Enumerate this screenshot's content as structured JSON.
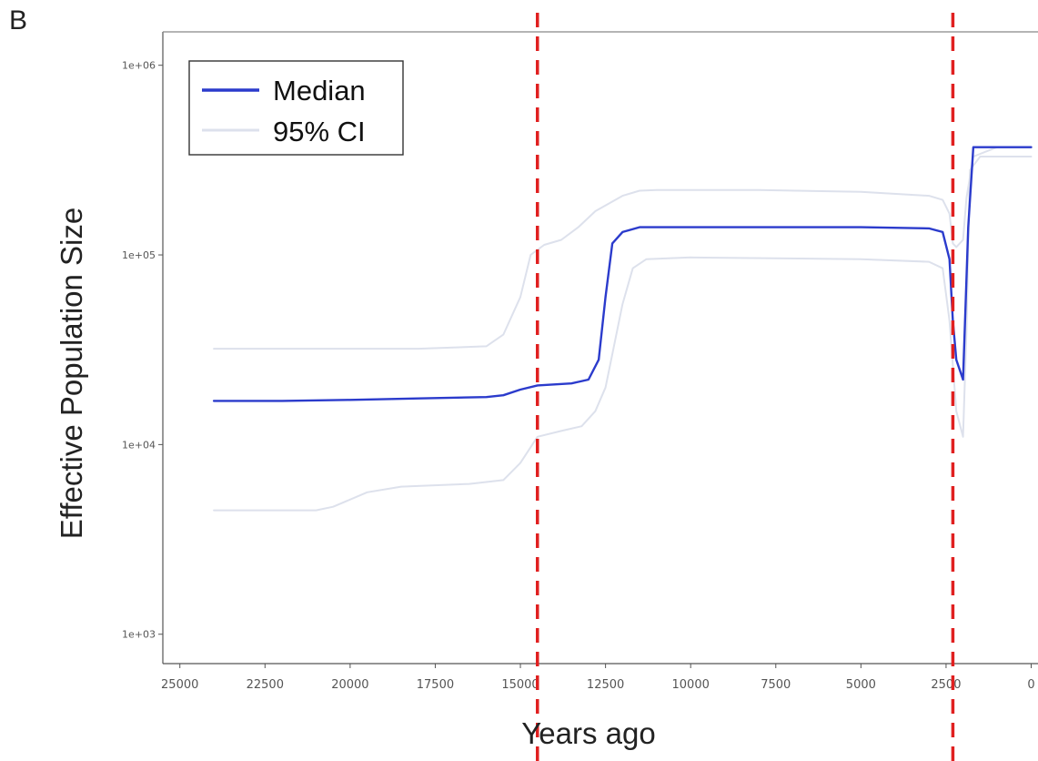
{
  "panel_label": "B",
  "chart_data": {
    "type": "line",
    "xlabel": "Years ago",
    "ylabel": "Effective Population Size",
    "x_reversed": true,
    "y_scale": "log",
    "xlim": [
      25500,
      -200
    ],
    "ylim": [
      700,
      1500000
    ],
    "x_ticks": [
      25000,
      22500,
      20000,
      17500,
      15000,
      12500,
      10000,
      7500,
      5000,
      2500,
      0
    ],
    "x_tick_labels": [
      "25000",
      "22500",
      "20000",
      "17500",
      "15000",
      "12500",
      "10000",
      "7500",
      "5000",
      "2500",
      "0"
    ],
    "y_ticks": [
      1000,
      10000,
      100000,
      1000000
    ],
    "y_tick_labels": [
      "1e+03",
      "1e+04",
      "1e+05",
      "1e+06"
    ],
    "grid": false,
    "legend": {
      "position": "top-left",
      "entries": [
        {
          "label": "Median",
          "color": "#2b3bcc"
        },
        {
          "label": "95% CI",
          "color": "#dde1ec"
        }
      ]
    },
    "vlines": [
      {
        "x": 14500,
        "color": "#e02020",
        "style": "dashed"
      },
      {
        "x": 2300,
        "color": "#e02020",
        "style": "dashed"
      }
    ],
    "series": [
      {
        "name": "Median",
        "color": "#2b3bcc",
        "width": 2.4,
        "points": [
          [
            24000,
            17000
          ],
          [
            22000,
            17000
          ],
          [
            20000,
            17200
          ],
          [
            18000,
            17500
          ],
          [
            16000,
            17800
          ],
          [
            15500,
            18200
          ],
          [
            15000,
            19500
          ],
          [
            14500,
            20500
          ],
          [
            13500,
            21000
          ],
          [
            13000,
            22000
          ],
          [
            12700,
            28000
          ],
          [
            12500,
            60000
          ],
          [
            12300,
            115000
          ],
          [
            12000,
            132000
          ],
          [
            11500,
            140000
          ],
          [
            11000,
            140000
          ],
          [
            8000,
            140000
          ],
          [
            5000,
            140000
          ],
          [
            3000,
            138000
          ],
          [
            2600,
            132000
          ],
          [
            2400,
            95000
          ],
          [
            2300,
            45000
          ],
          [
            2200,
            28000
          ],
          [
            2000,
            22000
          ],
          [
            1850,
            140000
          ],
          [
            1700,
            370000
          ],
          [
            1000,
            370000
          ],
          [
            0,
            370000
          ]
        ]
      },
      {
        "name": "CI upper",
        "color": "#dde1ec",
        "width": 2,
        "points": [
          [
            24000,
            32000
          ],
          [
            22000,
            32000
          ],
          [
            18000,
            32000
          ],
          [
            16000,
            33000
          ],
          [
            15500,
            38000
          ],
          [
            15000,
            60000
          ],
          [
            14700,
            100000
          ],
          [
            14300,
            113000
          ],
          [
            13800,
            120000
          ],
          [
            13300,
            140000
          ],
          [
            12800,
            170000
          ],
          [
            12000,
            205000
          ],
          [
            11500,
            218000
          ],
          [
            11000,
            220000
          ],
          [
            8000,
            220000
          ],
          [
            5000,
            215000
          ],
          [
            3000,
            205000
          ],
          [
            2600,
            195000
          ],
          [
            2400,
            165000
          ],
          [
            2300,
            115000
          ],
          [
            2200,
            110000
          ],
          [
            2000,
            120000
          ],
          [
            1900,
            200000
          ],
          [
            1700,
            330000
          ],
          [
            1000,
            370000
          ],
          [
            0,
            370000
          ]
        ]
      },
      {
        "name": "CI lower",
        "color": "#dde1ec",
        "width": 2,
        "points": [
          [
            24000,
            4500
          ],
          [
            22000,
            4500
          ],
          [
            21000,
            4500
          ],
          [
            20500,
            4700
          ],
          [
            19500,
            5600
          ],
          [
            18500,
            6000
          ],
          [
            16500,
            6200
          ],
          [
            15500,
            6500
          ],
          [
            15000,
            8000
          ],
          [
            14500,
            11000
          ],
          [
            13800,
            11800
          ],
          [
            13200,
            12500
          ],
          [
            12800,
            15000
          ],
          [
            12500,
            20000
          ],
          [
            12300,
            30000
          ],
          [
            12000,
            55000
          ],
          [
            11700,
            85000
          ],
          [
            11300,
            95000
          ],
          [
            10000,
            97000
          ],
          [
            5000,
            95000
          ],
          [
            3000,
            92000
          ],
          [
            2600,
            85000
          ],
          [
            2400,
            45000
          ],
          [
            2200,
            15000
          ],
          [
            2000,
            11000
          ],
          [
            1900,
            40000
          ],
          [
            1800,
            280000
          ],
          [
            1500,
            330000
          ],
          [
            0,
            330000
          ]
        ]
      }
    ]
  }
}
